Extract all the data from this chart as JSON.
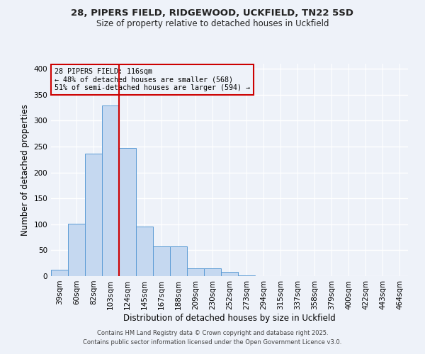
{
  "title_line1": "28, PIPERS FIELD, RIDGEWOOD, UCKFIELD, TN22 5SD",
  "title_line2": "Size of property relative to detached houses in Uckfield",
  "xlabel": "Distribution of detached houses by size in Uckfield",
  "ylabel": "Number of detached properties",
  "bar_labels": [
    "39sqm",
    "60sqm",
    "82sqm",
    "103sqm",
    "124sqm",
    "145sqm",
    "167sqm",
    "188sqm",
    "209sqm",
    "230sqm",
    "252sqm",
    "273sqm",
    "294sqm",
    "315sqm",
    "337sqm",
    "358sqm",
    "379sqm",
    "400sqm",
    "422sqm",
    "443sqm",
    "464sqm"
  ],
  "bar_values": [
    12,
    101,
    236,
    330,
    248,
    96,
    57,
    57,
    15,
    15,
    8,
    1,
    0,
    0,
    0,
    0,
    0,
    0,
    0,
    0,
    0
  ],
  "bar_color": "#c5d8f0",
  "bar_edge_color": "#5b9bd5",
  "vline_x": 3.52,
  "vline_color": "#cc0000",
  "annotation_title": "28 PIPERS FIELD: 116sqm",
  "annotation_line2": "← 48% of detached houses are smaller (568)",
  "annotation_line3": "51% of semi-detached houses are larger (594) →",
  "annotation_box_edge": "#cc0000",
  "ylim": [
    0,
    410
  ],
  "yticks": [
    0,
    50,
    100,
    150,
    200,
    250,
    300,
    350,
    400
  ],
  "background_color": "#eef2f9",
  "footer_line1": "Contains HM Land Registry data © Crown copyright and database right 2025.",
  "footer_line2": "Contains public sector information licensed under the Open Government Licence v3.0."
}
